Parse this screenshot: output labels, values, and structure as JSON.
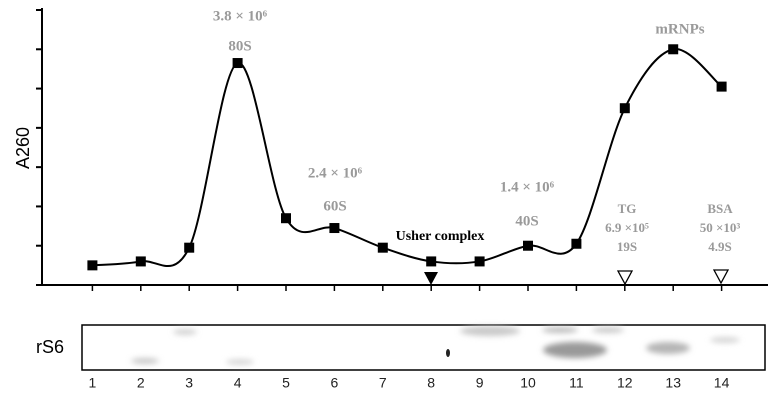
{
  "chart_data": {
    "type": "line",
    "y_label": "A260",
    "blot_label": "rS6",
    "x": [
      1,
      2,
      3,
      4,
      5,
      6,
      7,
      8,
      9,
      10,
      11,
      12,
      13,
      14
    ],
    "values": [
      0.5,
      0.6,
      0.95,
      5.65,
      1.7,
      1.45,
      0.95,
      0.6,
      0.6,
      1.0,
      1.05,
      4.5,
      6.0,
      5.05
    ],
    "color": "#000000",
    "xlim": [
      0,
      15
    ],
    "xticks": [
      1,
      2,
      3,
      4,
      5,
      6,
      7,
      8,
      9,
      10,
      11,
      12,
      13,
      14
    ],
    "ylim": [
      0,
      7
    ],
    "yticks": [
      0,
      1,
      2,
      3,
      4,
      5,
      6,
      7
    ],
    "annotations": [
      "3.8 × 10⁶",
      "80S",
      "2.4 × 10⁶",
      "60S",
      "Usher complex",
      "1.4 × 10⁶",
      "40S",
      "TG",
      "6.9 ×10⁵",
      "19S",
      "BSA",
      "50 ×10³",
      "4.9S",
      "mRNPs"
    ]
  }
}
